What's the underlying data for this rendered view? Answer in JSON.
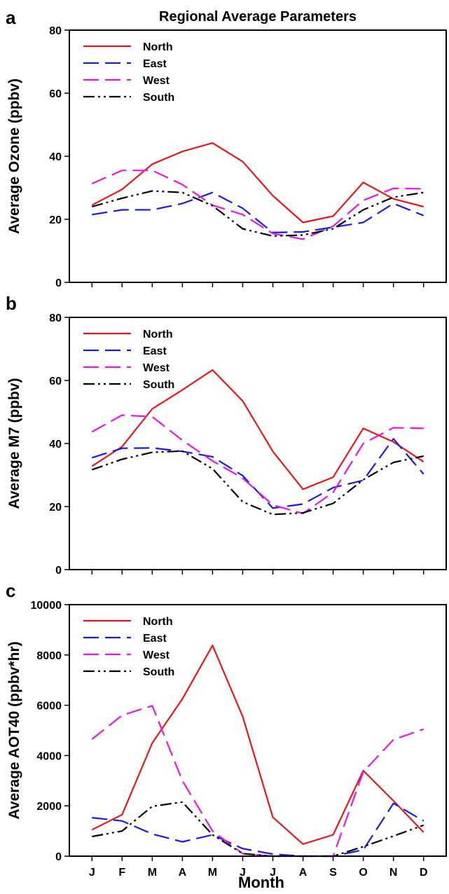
{
  "chart_data": [
    {
      "type": "line",
      "panel": "a",
      "title": "Regional Average Parameters",
      "ylabel": "Average Ozone (ppbv)",
      "xlabel": "",
      "ylim": [
        0,
        80
      ],
      "yticks": [
        "0",
        "20",
        "40",
        "60",
        "80"
      ],
      "categories": [
        "J",
        "F",
        "M",
        "A",
        "M",
        "J",
        "J",
        "A",
        "S",
        "O",
        "N",
        "D"
      ],
      "show_x_tick_labels": false,
      "legend": "top-left",
      "series": [
        {
          "name": "North",
          "color": "#e8161b",
          "dash": "solid",
          "values": [
            24.5,
            29.5,
            37.5,
            41.5,
            44.2,
            38.3,
            27.5,
            19.0,
            21.0,
            31.7,
            26.5,
            24.0
          ]
        },
        {
          "name": "East",
          "color": "#1a1ae6",
          "dash": "dash",
          "values": [
            21.5,
            23.0,
            23.0,
            25.0,
            28.5,
            23.5,
            15.8,
            16.0,
            17.5,
            19.0,
            25.0,
            21.2
          ]
        },
        {
          "name": "West",
          "color": "#e616e6",
          "dash": "dash",
          "values": [
            31.3,
            35.5,
            35.5,
            31.0,
            24.5,
            21.5,
            15.5,
            13.7,
            17.8,
            26.0,
            29.8,
            29.7
          ]
        },
        {
          "name": "South",
          "color": "#000000",
          "dash": "dashdot",
          "values": [
            24.0,
            26.7,
            29.0,
            28.5,
            24.3,
            17.0,
            14.7,
            15.0,
            17.0,
            23.0,
            27.0,
            28.5
          ]
        }
      ]
    },
    {
      "type": "line",
      "panel": "b",
      "title": "",
      "ylabel": "Average M7 (ppbv)",
      "xlabel": "",
      "ylim": [
        0,
        80
      ],
      "yticks": [
        "0",
        "20",
        "40",
        "60",
        "80"
      ],
      "categories": [
        "J",
        "F",
        "M",
        "A",
        "M",
        "J",
        "J",
        "A",
        "S",
        "O",
        "N",
        "D"
      ],
      "show_x_tick_labels": false,
      "legend": "top-left",
      "series": [
        {
          "name": "North",
          "color": "#e8161b",
          "dash": "solid",
          "values": [
            32.8,
            39.0,
            51.0,
            57.0,
            63.3,
            53.5,
            37.5,
            25.5,
            29.3,
            44.8,
            40.5,
            34.2
          ]
        },
        {
          "name": "East",
          "color": "#1a1ae6",
          "dash": "dash",
          "values": [
            35.5,
            38.5,
            38.6,
            37.5,
            35.8,
            29.8,
            19.5,
            20.8,
            26.0,
            28.3,
            41.5,
            30.3
          ]
        },
        {
          "name": "West",
          "color": "#e616e6",
          "dash": "dash",
          "values": [
            43.7,
            49.0,
            48.5,
            41.0,
            34.5,
            29.0,
            20.5,
            17.8,
            24.5,
            40.0,
            45.0,
            44.8
          ]
        },
        {
          "name": "South",
          "color": "#000000",
          "dash": "dashdot",
          "values": [
            31.7,
            35.0,
            37.2,
            37.6,
            32.0,
            21.5,
            17.5,
            18.0,
            21.0,
            28.5,
            34.0,
            36.0
          ]
        }
      ]
    },
    {
      "type": "line",
      "panel": "c",
      "title": "",
      "ylabel": "Average AOT40 (ppbv*hr)",
      "xlabel": "Month",
      "ylim": [
        0,
        10000
      ],
      "yticks": [
        "0",
        "2000",
        "4000",
        "6000",
        "8000",
        "10000"
      ],
      "categories": [
        "J",
        "F",
        "M",
        "A",
        "M",
        "J",
        "J",
        "A",
        "S",
        "O",
        "N",
        "D"
      ],
      "show_x_tick_labels": true,
      "legend": "top-left",
      "series": [
        {
          "name": "North",
          "color": "#e8161b",
          "dash": "solid",
          "values": [
            1050,
            1650,
            4500,
            6250,
            8380,
            5550,
            1550,
            480,
            850,
            3400,
            2200,
            950
          ]
        },
        {
          "name": "East",
          "color": "#1a1ae6",
          "dash": "dash",
          "values": [
            1530,
            1400,
            880,
            570,
            850,
            300,
            80,
            0,
            0,
            250,
            2100,
            1400
          ]
        },
        {
          "name": "West",
          "color": "#e616e6",
          "dash": "dash",
          "values": [
            4650,
            5600,
            5980,
            3000,
            1000,
            100,
            0,
            0,
            0,
            3350,
            4630,
            5050
          ]
        },
        {
          "name": "South",
          "color": "#000000",
          "dash": "dashdot",
          "values": [
            780,
            1000,
            1980,
            2150,
            850,
            100,
            0,
            0,
            0,
            380,
            800,
            1230
          ]
        }
      ]
    }
  ]
}
